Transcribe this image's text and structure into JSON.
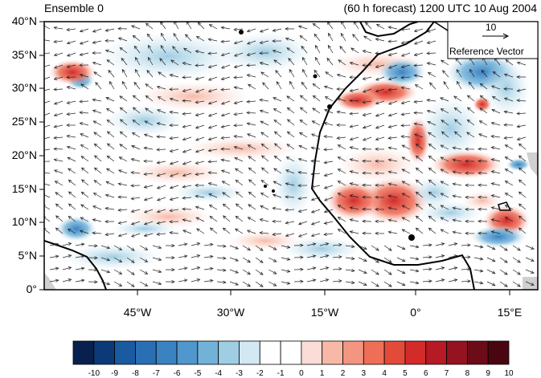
{
  "header": {
    "title_left": "Ensemble 0",
    "title_right": "(60 h forecast) 1200 UTC 10 Aug 2004"
  },
  "map": {
    "lat_labels": [
      "40°N",
      "35°N",
      "30°N",
      "25°N",
      "20°N",
      "15°N",
      "10°N",
      "5°N",
      "0°"
    ],
    "lon_labels": [
      "45°W",
      "30°W",
      "15°W",
      "0°",
      "15°E"
    ],
    "reference_vector": {
      "value": "10",
      "label": "Reference Vector"
    },
    "colors": {
      "land_gray": "#d0d0d0",
      "coast": "#000000"
    }
  },
  "colorbar": {
    "labels": [
      "-10",
      "-9",
      "-8",
      "-7",
      "-6",
      "-5",
      "-4",
      "-3",
      "-2",
      "-1",
      "0",
      "1",
      "2",
      "3",
      "4",
      "5",
      "6",
      "7",
      "8",
      "9",
      "10"
    ],
    "colors": [
      "#08204d",
      "#0c3a78",
      "#1a5aa0",
      "#2a6fb4",
      "#3a82c2",
      "#4f97cc",
      "#72b2d9",
      "#9fcde3",
      "#d2e8f2",
      "#ffffff",
      "#ffffff",
      "#fbdcd6",
      "#f7b9a6",
      "#f39580",
      "#ee6e57",
      "#e34a3a",
      "#d22b2a",
      "#b61a24",
      "#951220",
      "#6e0b18",
      "#4a0610"
    ]
  }
}
